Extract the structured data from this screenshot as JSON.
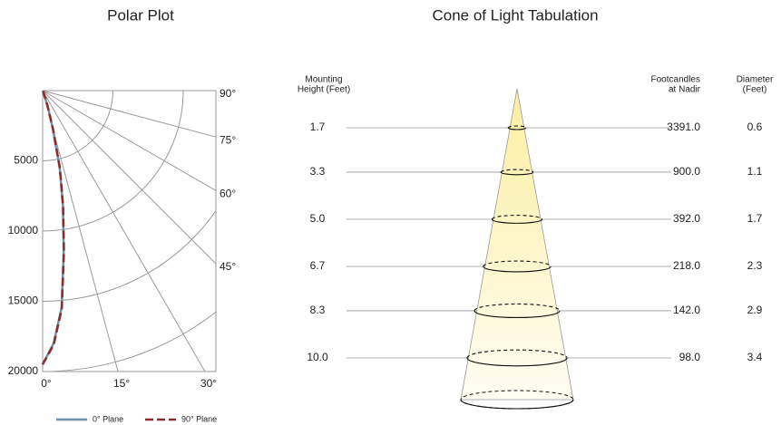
{
  "chart_data": [
    {
      "type": "polar",
      "title": "Polar Plot",
      "rlim": [
        0,
        20000
      ],
      "rticks": [
        5000,
        10000,
        15000,
        20000
      ],
      "angle_ticks": [
        {
          "value": 0,
          "label": "0°"
        },
        {
          "value": 15,
          "label": "15°"
        },
        {
          "value": 30,
          "label": "30°"
        },
        {
          "value": 45,
          "label": "45°"
        },
        {
          "value": 60,
          "label": "60°"
        },
        {
          "value": 75,
          "label": "75°"
        },
        {
          "value": 90,
          "label": "90°"
        }
      ],
      "series": [
        {
          "name": "0° Plane",
          "color": "#6f8fae",
          "dashed": false,
          "angles": [
            0,
            2.5,
            5,
            7.5,
            10,
            12.5,
            15,
            17.5,
            20,
            25,
            30
          ],
          "values": [
            19500,
            18000,
            15500,
            11500,
            8300,
            5600,
            2800,
            1200,
            400,
            100,
            0
          ]
        },
        {
          "name": "90° Plane",
          "color": "#8b2c2c",
          "dashed": true,
          "angles": [
            0,
            2.5,
            5,
            7.5,
            10,
            12.5,
            15,
            17.5,
            20,
            25,
            30
          ],
          "values": [
            19500,
            18100,
            15600,
            11600,
            8400,
            5700,
            2900,
            1250,
            420,
            100,
            0
          ]
        }
      ]
    },
    {
      "type": "cone",
      "title": "Cone of Light Tabulation",
      "height_header": [
        "Mounting",
        "Height (Feet)"
      ],
      "footcandles_header": [
        "Footcandles",
        "at Nadir"
      ],
      "diameter_header": [
        "Diameter",
        "(Feet)"
      ],
      "heights": [
        1.7,
        3.3,
        5.0,
        6.7,
        8.3,
        10.0
      ],
      "height_labels": [
        "1.7",
        "3.3",
        "5.0",
        "6.7",
        "8.3",
        "10.0"
      ],
      "footcandles": [
        "3391.0",
        "900.0",
        "392.0",
        "218.0",
        "142.0",
        "98.0"
      ],
      "diameters": [
        0.6,
        1.1,
        1.7,
        2.3,
        2.9,
        3.4
      ]
    }
  ]
}
